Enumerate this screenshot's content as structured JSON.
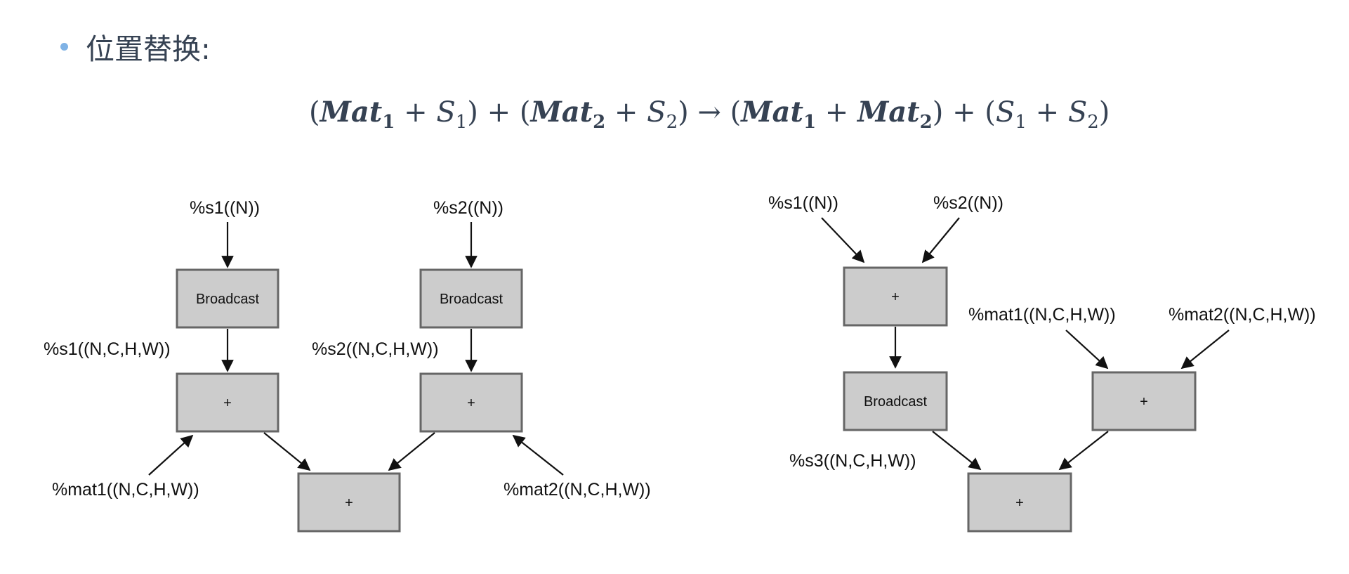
{
  "heading": "位置替换:",
  "formula": {
    "p1_open": "(",
    "mat1": "Mat",
    "mat1_sub": "1",
    "plus1": " + ",
    "s1": "S",
    "s1_sub": "1",
    "p1_close": ") + (",
    "mat2": "Mat",
    "mat2_sub": "2",
    "plus2": " + ",
    "s2": "S",
    "s2_sub": "2",
    "arrow": ") → (",
    "mat1b": "Mat",
    "mat1b_sub": "1",
    "plus3": " + ",
    "mat2b": "Mat",
    "mat2b_sub": "2",
    "p2_close": ") + (",
    "s1b": "S",
    "s1b_sub": "1",
    "plus4": " + ",
    "s2b": "S",
    "s2b_sub": "2",
    "end": ")"
  },
  "left_graph": {
    "input_s1": "%s1((N))",
    "input_s2": "%s2((N))",
    "broadcast1": "Broadcast",
    "broadcast2": "Broadcast",
    "s1_expanded": "%s1((N,C,H,W))",
    "s2_expanded": "%s2((N,C,H,W))",
    "add1": "+",
    "add2": "+",
    "add_final": "+",
    "input_mat1": "%mat1((N,C,H,W))",
    "input_mat2": "%mat2((N,C,H,W))"
  },
  "right_graph": {
    "input_s1": "%s1((N))",
    "input_s2": "%s2((N))",
    "add_s": "+",
    "broadcast": "Broadcast",
    "s3_expanded": "%s3((N,C,H,W))",
    "input_mat1": "%mat1((N,C,H,W))",
    "input_mat2": "%mat2((N,C,H,W))",
    "add_mat": "+",
    "add_final": "+"
  }
}
